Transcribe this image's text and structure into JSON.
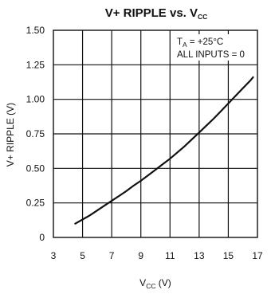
{
  "chart_data": {
    "type": "line",
    "title": {
      "main": "V+ RIPPLE vs. V",
      "sub": "CC"
    },
    "xlabel": {
      "main": "V",
      "sub": "CC",
      "suffix": " (V)"
    },
    "ylabel": "V+ RIPPLE (V)",
    "xlim": [
      3,
      17
    ],
    "ylim": [
      0,
      1.5
    ],
    "x_ticks": [
      "3",
      "5",
      "7",
      "9",
      "11",
      "13",
      "15",
      "17"
    ],
    "x_tick_values": [
      3,
      5,
      7,
      9,
      11,
      13,
      15,
      17
    ],
    "y_ticks": [
      "0",
      "0.25",
      "0.50",
      "0.75",
      "1.00",
      "1.25",
      "1.50"
    ],
    "y_tick_values": [
      0,
      0.25,
      0.5,
      0.75,
      1.0,
      1.25,
      1.5
    ],
    "grid": true,
    "annotations": {
      "line1_main": "T",
      "line1_sub": "A",
      "line1_rest": " = +25°C",
      "line2": "ALL INPUTS = 0"
    },
    "series": [
      {
        "x": [
          4.5,
          5.0,
          5.5,
          6.0,
          6.5,
          7.0,
          7.5,
          8.0,
          8.5,
          9.0,
          9.5,
          10.0,
          10.5,
          11.0,
          11.5,
          12.0,
          12.5,
          13.0,
          13.5,
          14.0,
          14.5,
          15.0,
          15.5,
          16.0,
          16.5,
          16.7
        ],
        "y": [
          0.1,
          0.13,
          0.16,
          0.195,
          0.23,
          0.265,
          0.3,
          0.335,
          0.375,
          0.41,
          0.45,
          0.49,
          0.53,
          0.57,
          0.615,
          0.66,
          0.71,
          0.76,
          0.81,
          0.86,
          0.915,
          0.97,
          1.025,
          1.08,
          1.135,
          1.16
        ]
      }
    ]
  }
}
